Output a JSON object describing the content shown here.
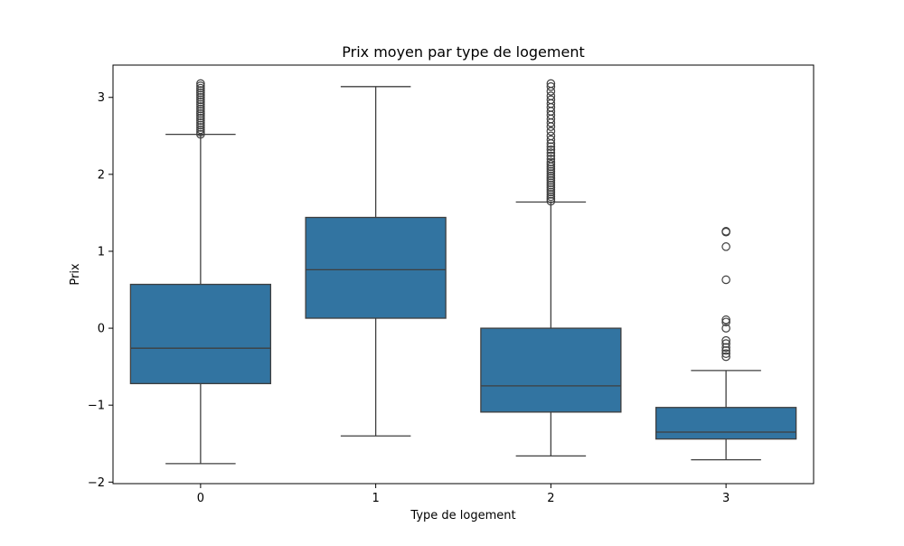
{
  "chart_data": {
    "type": "box",
    "title": "Prix moyen par type de logement",
    "xlabel": "Type de logement",
    "ylabel": "Prix",
    "ylim": [
      -2.02,
      3.42
    ],
    "yticks": [
      "−2",
      "−1",
      "0",
      "1",
      "2",
      "3"
    ],
    "ytick_values": [
      -2,
      -1,
      0,
      1,
      2,
      3
    ],
    "categories": [
      "0",
      "1",
      "2",
      "3"
    ],
    "box_color": "#3274a1",
    "line_color": "#3f3f3f",
    "grid": false,
    "boxes": [
      {
        "category": "0",
        "whisker_low": -1.76,
        "q1": -0.72,
        "median": -0.26,
        "q3": 0.57,
        "whisker_high": 2.52,
        "outliers": [
          2.52,
          2.55,
          2.58,
          2.61,
          2.64,
          2.67,
          2.7,
          2.73,
          2.76,
          2.79,
          2.82,
          2.85,
          2.88,
          2.91,
          2.94,
          2.97,
          3.0,
          3.03,
          3.06,
          3.09,
          3.12,
          3.15,
          3.18
        ]
      },
      {
        "category": "1",
        "whisker_low": -1.4,
        "q1": 0.13,
        "median": 0.76,
        "q3": 1.44,
        "whisker_high": 3.14,
        "outliers": []
      },
      {
        "category": "2",
        "whisker_low": -1.66,
        "q1": -1.09,
        "median": -0.75,
        "q3": 0.0,
        "whisker_high": 1.64,
        "outliers": [
          1.65,
          1.68,
          1.71,
          1.74,
          1.77,
          1.8,
          1.83,
          1.86,
          1.89,
          1.92,
          1.95,
          1.98,
          2.01,
          2.04,
          2.07,
          2.1,
          2.13,
          2.16,
          2.2,
          2.24,
          2.28,
          2.32,
          2.36,
          2.4,
          2.45,
          2.5,
          2.56,
          2.62,
          2.67,
          2.72,
          2.77,
          2.82,
          2.87,
          2.92,
          2.97,
          3.02,
          3.08,
          3.14,
          3.18
        ]
      },
      {
        "category": "3",
        "whisker_low": -1.71,
        "q1": -1.44,
        "median": -1.35,
        "q3": -1.03,
        "whisker_high": -0.55,
        "outliers": [
          -0.37,
          -0.33,
          -0.29,
          -0.25,
          -0.2,
          -0.16,
          0.0,
          0.08,
          0.11,
          0.63,
          1.06,
          1.25,
          1.26
        ]
      }
    ]
  }
}
